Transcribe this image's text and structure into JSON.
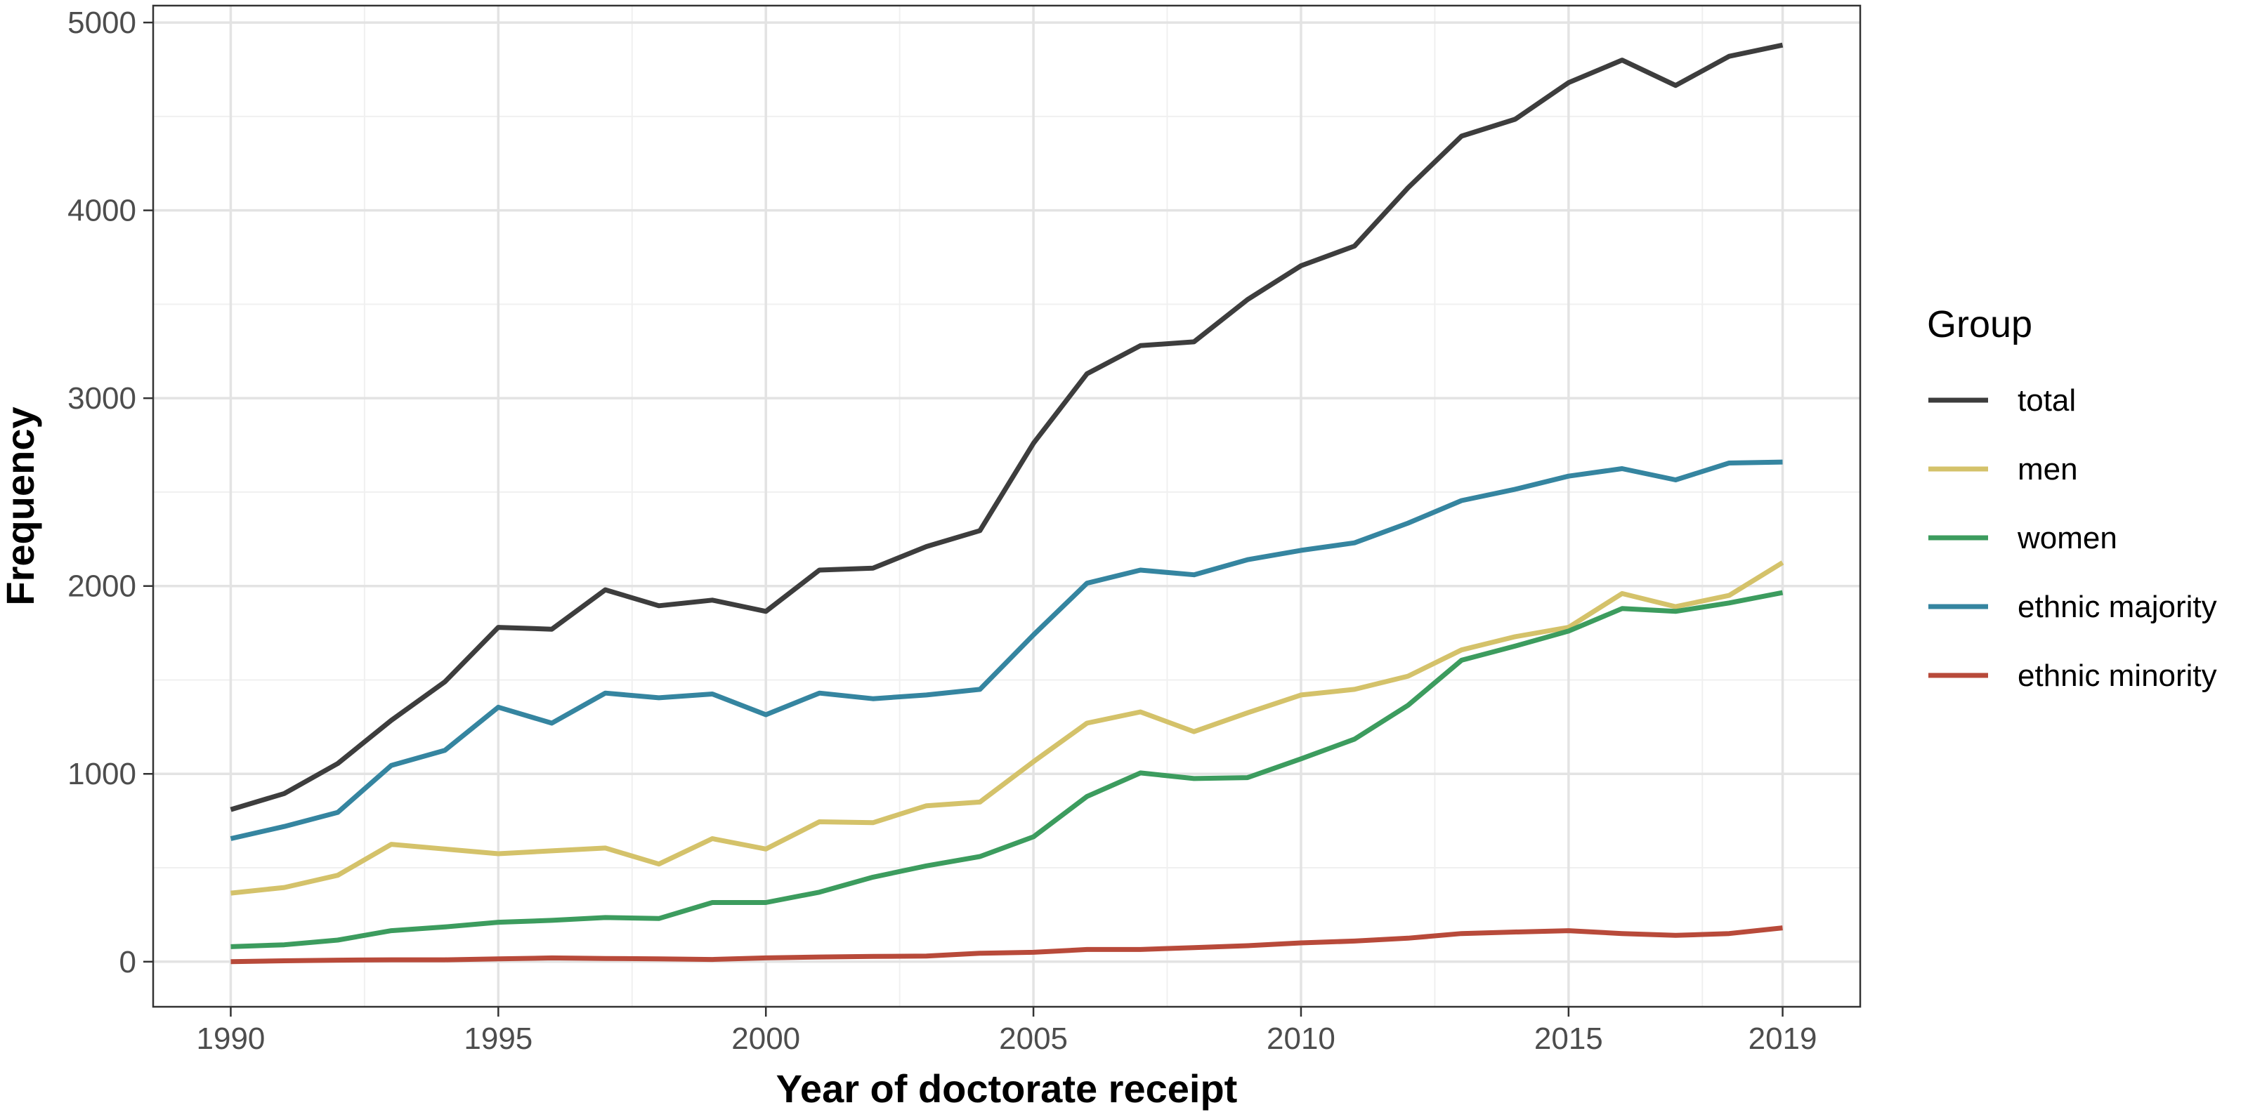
{
  "chart_data": {
    "type": "line",
    "title": "",
    "xlabel": "Year of doctorate receipt",
    "ylabel": "Frequency",
    "xlim": [
      1988.55,
      2020.45
    ],
    "ylim": [
      -240,
      5090
    ],
    "x_ticks": [
      1990,
      1995,
      2000,
      2005,
      2010,
      2015,
      2019
    ],
    "x_minor_gridlines": [
      1992.5,
      1997.5,
      2002.5,
      2007.5,
      2012.5,
      2017.5
    ],
    "y_ticks": [
      0,
      1000,
      2000,
      3000,
      4000,
      5000
    ],
    "grid": true,
    "legend": {
      "title": "Group",
      "placement": "right"
    },
    "x": [
      1990,
      1991,
      1992,
      1993,
      1994,
      1995,
      1996,
      1997,
      1998,
      1999,
      2000,
      2001,
      2002,
      2003,
      2004,
      2005,
      2006,
      2007,
      2008,
      2009,
      2010,
      2011,
      2012,
      2013,
      2014,
      2015,
      2016,
      2017,
      2018,
      2019
    ],
    "series": [
      {
        "name": "total",
        "color": "#3d3d3d",
        "values": [
          810,
          895,
          1055,
          1285,
          1490,
          1780,
          1770,
          1980,
          1895,
          1925,
          1865,
          2085,
          2095,
          2210,
          2295,
          2760,
          3130,
          3280,
          3300,
          3525,
          3705,
          3810,
          4120,
          4395,
          4485,
          4680,
          4800,
          4665,
          4820,
          4880
        ]
      },
      {
        "name": "men",
        "color": "#d4c26a",
        "values": [
          365,
          395,
          460,
          625,
          600,
          575,
          590,
          605,
          520,
          655,
          600,
          745,
          740,
          830,
          850,
          1065,
          1270,
          1330,
          1225,
          1325,
          1420,
          1450,
          1520,
          1660,
          1730,
          1780,
          1960,
          1890,
          1950,
          2125
        ]
      },
      {
        "name": "women",
        "color": "#3c9c5e",
        "values": [
          80,
          90,
          115,
          165,
          185,
          210,
          220,
          235,
          230,
          315,
          315,
          370,
          450,
          510,
          560,
          665,
          880,
          1005,
          975,
          980,
          1080,
          1185,
          1365,
          1605,
          1680,
          1760,
          1880,
          1865,
          1910,
          1965
        ]
      },
      {
        "name": "ethnic majority",
        "color": "#3585a0",
        "values": [
          655,
          720,
          795,
          1045,
          1125,
          1355,
          1270,
          1430,
          1405,
          1425,
          1315,
          1430,
          1400,
          1420,
          1450,
          1740,
          2015,
          2085,
          2060,
          2140,
          2190,
          2230,
          2335,
          2455,
          2515,
          2585,
          2625,
          2565,
          2655,
          2660
        ]
      },
      {
        "name": "ethnic minority",
        "color": "#b84a3a",
        "values": [
          0,
          5,
          8,
          10,
          10,
          15,
          20,
          17,
          15,
          12,
          20,
          25,
          28,
          30,
          45,
          50,
          65,
          65,
          75,
          85,
          100,
          110,
          125,
          150,
          158,
          165,
          150,
          140,
          150,
          180
        ]
      }
    ]
  }
}
